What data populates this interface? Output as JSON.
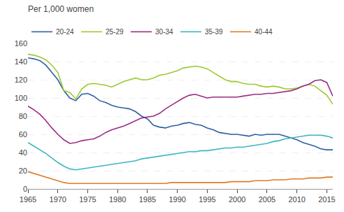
{
  "chart_data": {
    "type": "line",
    "title": "Per 1,000 women",
    "x": [
      1965,
      1966,
      1967,
      1968,
      1969,
      1970,
      1971,
      1972,
      1973,
      1974,
      1975,
      1976,
      1977,
      1978,
      1979,
      1980,
      1981,
      1982,
      1983,
      1984,
      1985,
      1986,
      1987,
      1988,
      1989,
      1990,
      1991,
      1992,
      1993,
      1994,
      1995,
      1996,
      1997,
      1998,
      1999,
      2000,
      2001,
      2002,
      2003,
      2004,
      2005,
      2006,
      2007,
      2008,
      2009,
      2010,
      2011,
      2012,
      2013,
      2014,
      2015,
      2016
    ],
    "series": [
      {
        "name": "20-24",
        "color": "#2E5FA3",
        "values": [
          144,
          143,
          141,
          136,
          128,
          120,
          108,
          100,
          97,
          104,
          105,
          102,
          97,
          95,
          92,
          90,
          89,
          88,
          85,
          80,
          77,
          70,
          68,
          67,
          69,
          70,
          72,
          73,
          71,
          70,
          67,
          65,
          62,
          61,
          60,
          60,
          59,
          58,
          60,
          59,
          60,
          60,
          60,
          58,
          56,
          54,
          51,
          49,
          47,
          44,
          43,
          43
        ]
      },
      {
        "name": "25-29",
        "color": "#9DC832",
        "values": [
          148,
          147,
          145,
          142,
          136,
          128,
          108,
          106,
          99,
          110,
          115,
          116,
          115,
          114,
          112,
          115,
          118,
          120,
          122,
          120,
          120,
          122,
          125,
          126,
          128,
          130,
          133,
          134,
          135,
          134,
          132,
          128,
          124,
          120,
          118,
          118,
          116,
          115,
          115,
          113,
          112,
          113,
          112,
          110,
          110,
          111,
          113,
          115,
          113,
          108,
          103,
          93
        ]
      },
      {
        "name": "30-34",
        "color": "#9B2C82",
        "values": [
          91,
          87,
          82,
          75,
          67,
          60,
          54,
          50,
          51,
          53,
          54,
          55,
          58,
          62,
          65,
          67,
          69,
          72,
          75,
          78,
          79,
          80,
          83,
          88,
          92,
          96,
          100,
          103,
          104,
          102,
          100,
          101,
          101,
          101,
          101,
          101,
          102,
          103,
          104,
          104,
          105,
          105,
          106,
          107,
          108,
          110,
          113,
          115,
          119,
          120,
          117,
          102
        ]
      },
      {
        "name": "35-39",
        "color": "#3CB5C0",
        "values": [
          51,
          47,
          43,
          39,
          34,
          29,
          25,
          22,
          21,
          22,
          23,
          24,
          25,
          26,
          27,
          28,
          29,
          30,
          31,
          33,
          34,
          35,
          36,
          37,
          38,
          39,
          40,
          41,
          41,
          42,
          42,
          43,
          44,
          45,
          45,
          46,
          46,
          47,
          48,
          49,
          50,
          52,
          53,
          55,
          56,
          57,
          58,
          59,
          59,
          59,
          58,
          56
        ]
      },
      {
        "name": "40-44",
        "color": "#E07B28",
        "values": [
          19,
          17,
          15,
          13,
          11,
          9,
          7,
          6,
          6,
          6,
          6,
          6,
          6,
          6,
          6,
          6,
          6,
          6,
          6,
          6,
          6,
          6,
          6,
          6,
          7,
          7,
          7,
          7,
          7,
          7,
          7,
          7,
          7,
          7,
          8,
          8,
          8,
          8,
          9,
          9,
          9,
          10,
          10,
          10,
          11,
          11,
          11,
          12,
          12,
          12,
          13,
          13
        ]
      }
    ],
    "xlim": [
      1965,
      2016
    ],
    "xticks": [
      1965,
      1970,
      1975,
      1980,
      1985,
      1990,
      1995,
      2000,
      2005,
      2010,
      2015
    ],
    "ylim": [
      0,
      160
    ],
    "yticks": [
      0,
      20,
      40,
      60,
      80,
      100,
      120,
      140,
      160
    ],
    "grid": true,
    "legend": "upper left"
  }
}
